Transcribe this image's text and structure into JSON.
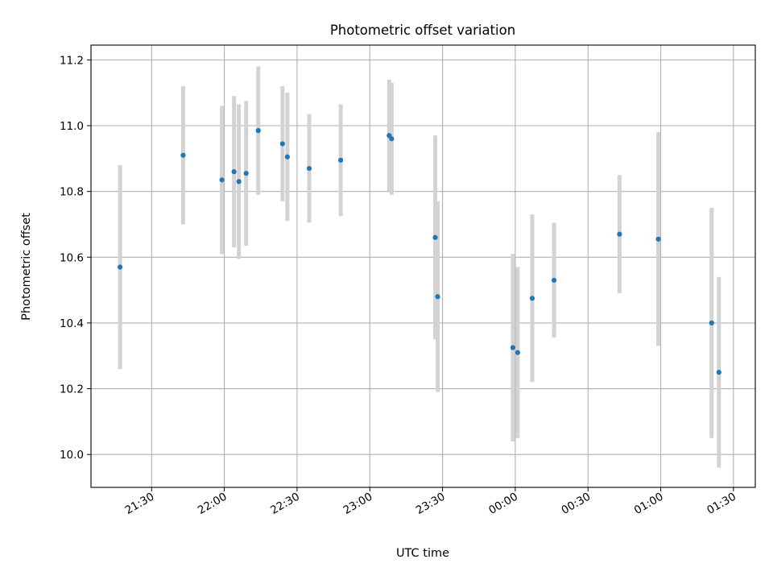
{
  "chart_data": {
    "type": "scatter",
    "title": "Photometric offset variation",
    "xlabel": "UTC time",
    "ylabel": "Photometric offset",
    "x_tick_labels": [
      "21:30",
      "22:00",
      "22:30",
      "23:00",
      "23:30",
      "00:00",
      "00:30",
      "01:00",
      "01:30"
    ],
    "y_tick_labels": [
      "10.0",
      "10.2",
      "10.4",
      "10.6",
      "10.8",
      "11.0",
      "11.2"
    ],
    "y_ticks": [
      10.0,
      10.2,
      10.4,
      10.6,
      10.8,
      11.0,
      11.2
    ],
    "ylim": [
      9.9,
      11.245
    ],
    "xlim": [
      "21:05",
      "01:39"
    ],
    "grid": true,
    "colors": {
      "marker": "#1f77b4",
      "errorbar": "#d3d3d3",
      "grid": "#b0b0b0"
    },
    "points": [
      {
        "time": "21:17",
        "y": 10.57,
        "err": 0.31
      },
      {
        "time": "21:43",
        "y": 10.91,
        "err": 0.21
      },
      {
        "time": "21:59",
        "y": 10.835,
        "err": 0.225
      },
      {
        "time": "22:04",
        "y": 10.86,
        "err": 0.23
      },
      {
        "time": "22:06",
        "y": 10.83,
        "err": 0.235
      },
      {
        "time": "22:09",
        "y": 10.855,
        "err": 0.22
      },
      {
        "time": "22:14",
        "y": 10.985,
        "err": 0.195
      },
      {
        "time": "22:24",
        "y": 10.945,
        "err": 0.175
      },
      {
        "time": "22:26",
        "y": 10.905,
        "err": 0.195
      },
      {
        "time": "22:35",
        "y": 10.87,
        "err": 0.165
      },
      {
        "time": "22:48",
        "y": 10.895,
        "err": 0.17
      },
      {
        "time": "23:08",
        "y": 10.97,
        "err": 0.17
      },
      {
        "time": "23:09",
        "y": 10.96,
        "err": 0.17
      },
      {
        "time": "23:27",
        "y": 10.66,
        "err": 0.31
      },
      {
        "time": "23:28",
        "y": 10.48,
        "err": 0.29
      },
      {
        "time": "23:59",
        "y": 10.325,
        "err": 0.285
      },
      {
        "time": "00:01",
        "y": 10.31,
        "err": 0.26
      },
      {
        "time": "00:07",
        "y": 10.475,
        "err": 0.255
      },
      {
        "time": "00:16",
        "y": 10.53,
        "err": 0.175
      },
      {
        "time": "00:43",
        "y": 10.67,
        "err": 0.18
      },
      {
        "time": "00:59",
        "y": 10.655,
        "err": 0.325
      },
      {
        "time": "01:21",
        "y": 10.4,
        "err": 0.35
      },
      {
        "time": "01:24",
        "y": 10.25,
        "err": 0.29
      }
    ]
  }
}
